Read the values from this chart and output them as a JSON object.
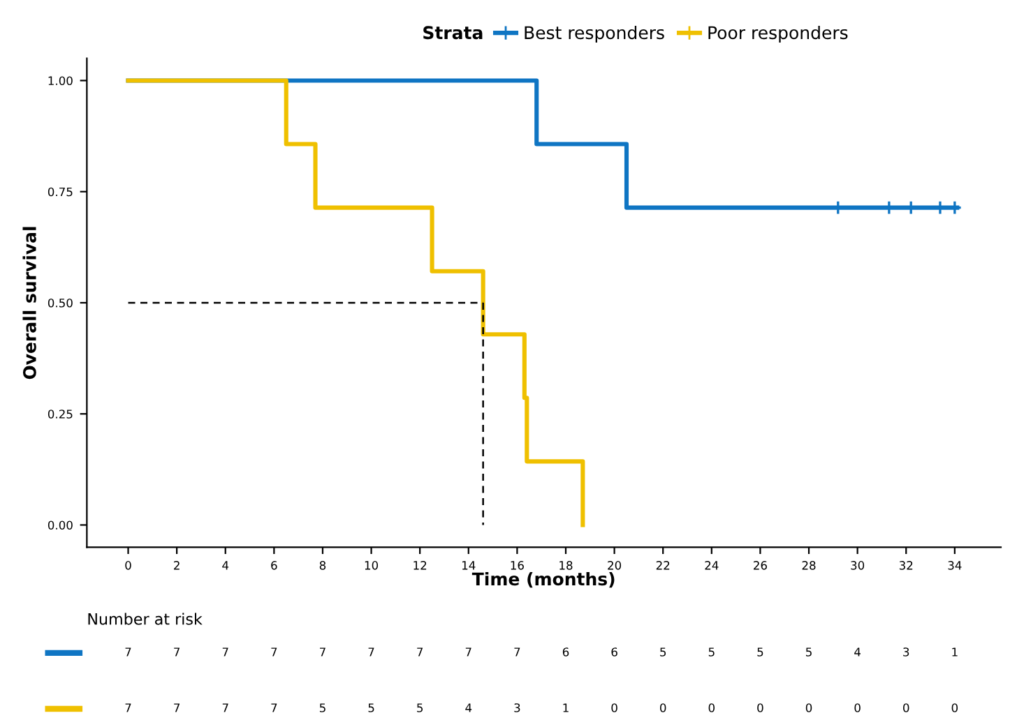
{
  "chart_data": [
    {
      "type": "step",
      "xlabel": "Time (months)",
      "ylabel": "Overall survival",
      "legend_title": "Strata",
      "legend": "top",
      "xlim": [
        -1.7,
        35.9
      ],
      "ylim": [
        -0.05,
        1.05
      ],
      "xticks": [
        0,
        2,
        4,
        6,
        8,
        10,
        12,
        14,
        16,
        18,
        20,
        22,
        24,
        26,
        28,
        30,
        32,
        34
      ],
      "yticks": [
        {
          "value": 0,
          "label": "0.00"
        },
        {
          "value": 0.25,
          "label": "0.25"
        },
        {
          "value": 0.5,
          "label": "0.50"
        },
        {
          "value": 0.75,
          "label": "0.75"
        },
        {
          "value": 1,
          "label": "1.00"
        }
      ],
      "grid": false,
      "series": [
        {
          "name": "Best responders",
          "color": "#0f75c3",
          "x": [
            0,
            16.8,
            20.5,
            34.1
          ],
          "values": [
            1,
            0.857,
            0.714,
            0.714
          ]
        },
        {
          "type": "scatter",
          "marker": "cross",
          "color": "#0f75c3",
          "x": [
            29.2,
            31.3,
            32.2,
            33.4,
            34.0
          ],
          "values": [
            0.714,
            0.714,
            0.714,
            0.714,
            0.714
          ]
        },
        {
          "name": "Poor responders",
          "color": "#efc000",
          "x": [
            0,
            6.5,
            7.7,
            12.5,
            14.6,
            16.3,
            16.4,
            18.7
          ],
          "values": [
            1,
            0.857,
            0.714,
            0.571,
            0.429,
            0.286,
            0.143,
            0
          ]
        },
        {
          "type": "line",
          "line_style": "dashed",
          "color": "#000000",
          "x": [
            0,
            14.6
          ],
          "values": [
            0.5,
            0.5
          ]
        },
        {
          "type": "line",
          "line_style": "dashed",
          "color": "#000000",
          "x": [
            14.6,
            14.6
          ],
          "values": [
            0.5,
            0
          ]
        }
      ]
    },
    {
      "type": "heatmap",
      "title": "Number at risk",
      "data_labels": true,
      "categories": [
        null,
        null,
        null,
        null,
        null,
        null,
        null,
        null,
        null,
        null,
        null,
        null,
        null,
        null,
        null,
        null,
        null,
        null
      ],
      "y_categories": [
        null,
        null
      ],
      "colors": [
        "#0f75c3",
        "#efc000"
      ],
      "cells": [
        [
          7,
          7,
          7,
          7,
          7,
          7,
          7,
          7,
          7,
          6,
          6,
          5,
          5,
          5,
          5,
          4,
          3,
          1
        ],
        [
          7,
          7,
          7,
          7,
          5,
          5,
          5,
          4,
          3,
          1,
          0,
          0,
          0,
          0,
          0,
          0,
          0,
          0
        ]
      ]
    }
  ]
}
